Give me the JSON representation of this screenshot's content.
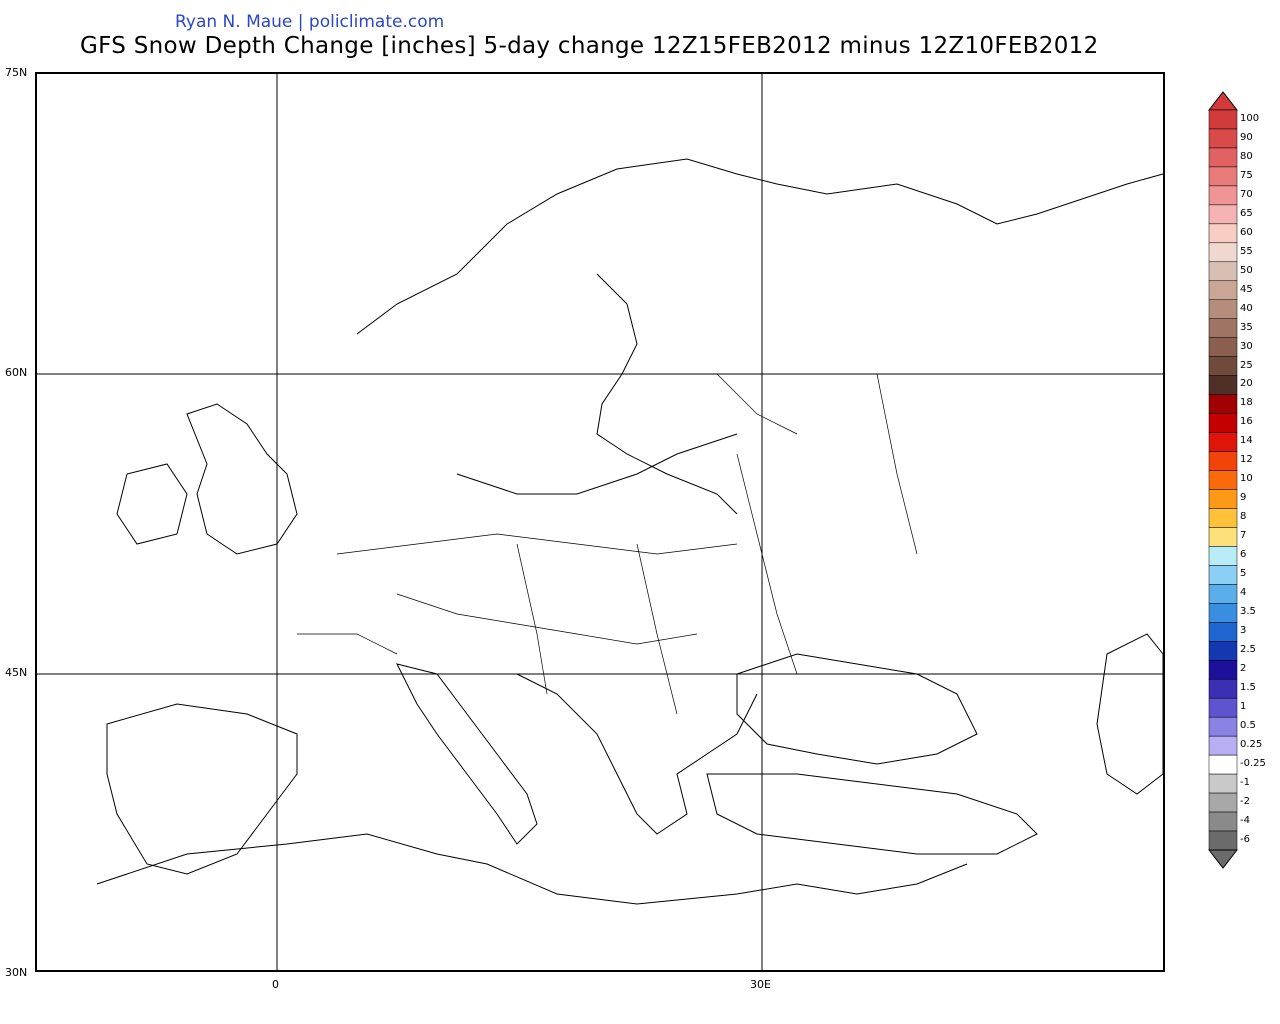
{
  "header": {
    "credit": "Ryan N. Maue | policlimate.com",
    "title": "GFS Snow Depth Change [inches] 5-day change 12Z15FEB2012 minus 12Z10FEB2012"
  },
  "axes": {
    "lat_labels": [
      "75N",
      "60N",
      "45N",
      "30N"
    ],
    "lon_labels": [
      "0",
      "30E"
    ]
  },
  "colorbar": {
    "levels": [
      "100",
      "90",
      "80",
      "75",
      "70",
      "65",
      "60",
      "55",
      "50",
      "45",
      "40",
      "35",
      "30",
      "25",
      "20",
      "18",
      "16",
      "14",
      "12",
      "10",
      "9",
      "8",
      "7",
      "6",
      "5",
      "4",
      "3.5",
      "3",
      "2.5",
      "2",
      "1.5",
      "1",
      "0.5",
      "0.25",
      "-0.25",
      "-1",
      "-2",
      "-4",
      "-6"
    ],
    "colors": [
      "#d13b3b",
      "#d94a4a",
      "#e06262",
      "#e87a7a",
      "#ef9595",
      "#f5b3b3",
      "#f7cdc4",
      "#efd9cf",
      "#d8bfb3",
      "#c9a696",
      "#b58d7c",
      "#a07464",
      "#8a5f50",
      "#6f4b3e",
      "#4f2f26",
      "#a00000",
      "#c40000",
      "#e0150a",
      "#f2440a",
      "#fb6a0a",
      "#fc9a18",
      "#fdc23a",
      "#fde07a",
      "#b8ecf7",
      "#8ccff4",
      "#5aaeea",
      "#3a8ee0",
      "#1f66d0",
      "#1438b0",
      "#1c0f9a",
      "#3b2fb4",
      "#5f54cf",
      "#8a82e4",
      "#b6b0f2",
      "#ffffff",
      "#c9c9c9",
      "#a8a8a8",
      "#8a8a8a",
      "#6b6b6b"
    ]
  }
}
